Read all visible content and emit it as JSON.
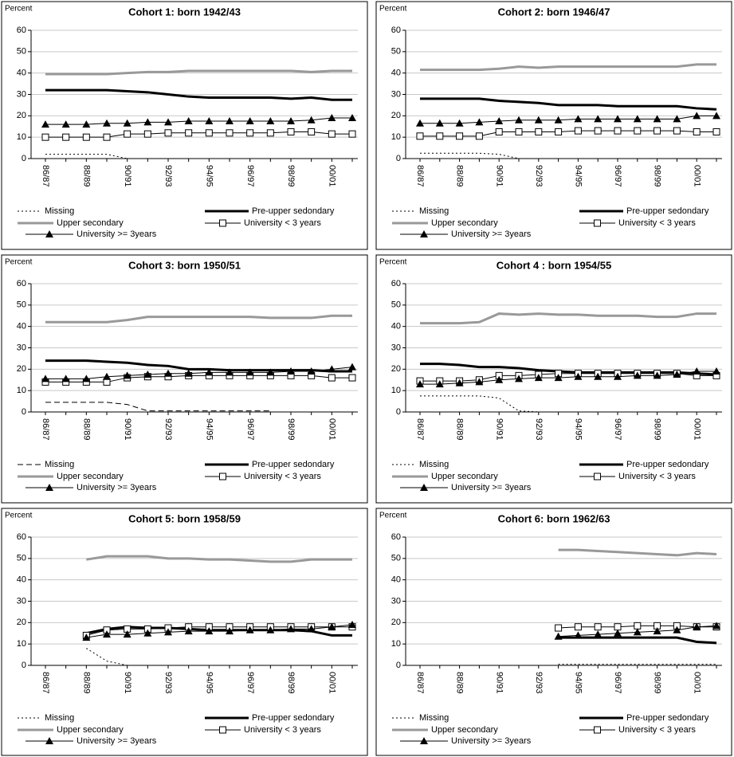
{
  "chart_data": [
    {
      "type": "line",
      "title": "Cohort 1: born 1942/43",
      "ylabel": "Percent",
      "categories": [
        "86/87",
        null,
        "88/89",
        null,
        "90/91",
        null,
        "92/93",
        null,
        "94/95",
        null,
        "96/97",
        null,
        "98/99",
        null,
        "00/01",
        null
      ],
      "ylim": [
        0,
        60
      ],
      "yticks": [
        0,
        10,
        20,
        30,
        40,
        50,
        60
      ],
      "grid": true,
      "series": [
        {
          "name": "Missing",
          "color": "#000000",
          "line": "dotted",
          "values": [
            2,
            2,
            2,
            2,
            0,
            0,
            0,
            0,
            0,
            0,
            0,
            0,
            0,
            0,
            0,
            0
          ]
        },
        {
          "name": "Pre-upper sedondary",
          "color": "#000000",
          "line": "bold",
          "values": [
            32,
            32,
            32,
            32,
            31.5,
            31,
            30,
            29,
            28.5,
            28.5,
            28.5,
            28.5,
            28,
            28.5,
            27.5,
            27.5
          ]
        },
        {
          "name": "Upper secondary",
          "color": "#999999",
          "line": "bold",
          "values": [
            39.5,
            39.5,
            39.5,
            39.5,
            40,
            40.5,
            40.5,
            41,
            41,
            41,
            41,
            41,
            41,
            40.5,
            41,
            41
          ]
        },
        {
          "name": "University < 3 years",
          "color": "#000000",
          "line": "solid",
          "marker": "square",
          "values": [
            10,
            10,
            10,
            10,
            11.5,
            11.5,
            12,
            12,
            12,
            12,
            12,
            12,
            12.5,
            12.5,
            11.5,
            11.5
          ]
        },
        {
          "name": "University >= 3years",
          "color": "#000000",
          "line": "solid",
          "marker": "triangle",
          "values": [
            16,
            16,
            16,
            16.5,
            16.5,
            17,
            17,
            17.5,
            17.5,
            17.5,
            17.5,
            17.5,
            17.5,
            18,
            19,
            19
          ]
        }
      ]
    },
    {
      "type": "line",
      "title": "Cohort 2: born 1946/47",
      "ylabel": "Percent",
      "categories": [
        "86/87",
        null,
        "88/89",
        null,
        "90/91",
        null,
        "92/93",
        null,
        "94/95",
        null,
        "96/97",
        null,
        "98/99",
        null,
        "00/01",
        null
      ],
      "ylim": [
        0,
        60
      ],
      "yticks": [
        0,
        10,
        20,
        30,
        40,
        50,
        60
      ],
      "grid": true,
      "series": [
        {
          "name": "Missing",
          "color": "#000000",
          "line": "dotted",
          "values": [
            2.5,
            2.5,
            2.5,
            2.5,
            2,
            0,
            0,
            0,
            0,
            0,
            0,
            0,
            0,
            0,
            0,
            0
          ]
        },
        {
          "name": "Pre-upper sedondary",
          "color": "#000000",
          "line": "bold",
          "values": [
            28,
            28,
            28,
            28,
            27,
            26.5,
            26,
            25,
            25,
            25,
            24.5,
            24.5,
            24.5,
            24.5,
            23.5,
            23
          ]
        },
        {
          "name": "Upper secondary",
          "color": "#999999",
          "line": "bold",
          "values": [
            41.5,
            41.5,
            41.5,
            41.5,
            42,
            43,
            42.5,
            43,
            43,
            43,
            43,
            43,
            43,
            43,
            44,
            44
          ]
        },
        {
          "name": "University < 3 years",
          "color": "#000000",
          "line": "solid",
          "marker": "square",
          "values": [
            10.5,
            10.5,
            10.5,
            10.5,
            12.5,
            12.5,
            12.5,
            12.5,
            13,
            13,
            13,
            13,
            13,
            13,
            12.5,
            12.5
          ]
        },
        {
          "name": "University >= 3years",
          "color": "#000000",
          "line": "solid",
          "marker": "triangle",
          "values": [
            16.5,
            16.5,
            16.5,
            17,
            17.5,
            18,
            18,
            18,
            18.5,
            18.5,
            18.5,
            18.5,
            18.5,
            18.5,
            20,
            20
          ]
        }
      ]
    },
    {
      "type": "line",
      "title": "Cohort 3: born 1950/51",
      "ylabel": "Percent",
      "categories": [
        "86/87",
        null,
        "88/89",
        null,
        "90/91",
        null,
        "92/93",
        null,
        "94/95",
        null,
        "96/97",
        null,
        "98/99",
        null,
        "00/01",
        null
      ],
      "ylim": [
        0,
        60
      ],
      "yticks": [
        0,
        10,
        20,
        30,
        40,
        50,
        60
      ],
      "grid": true,
      "series": [
        {
          "name": "Missing",
          "color": "#000000",
          "line": "dashed",
          "values": [
            4.5,
            4.5,
            4.5,
            4.5,
            3.5,
            0.5,
            0.5,
            0.5,
            0.5,
            0.5,
            0.5,
            0.5,
            null,
            null,
            null,
            null
          ]
        },
        {
          "name": "Pre-upper sedondary",
          "color": "#000000",
          "line": "bold",
          "values": [
            24,
            24,
            24,
            23.5,
            23,
            22,
            21.5,
            20,
            20,
            19.5,
            19.5,
            19.5,
            19.5,
            19.5,
            19,
            19
          ]
        },
        {
          "name": "Upper secondary",
          "color": "#999999",
          "line": "bold",
          "values": [
            42,
            42,
            42,
            42,
            43,
            44.5,
            44.5,
            44.5,
            44.5,
            44.5,
            44.5,
            44,
            44,
            44,
            45,
            45
          ]
        },
        {
          "name": "University < 3 years",
          "color": "#000000",
          "line": "solid",
          "marker": "square",
          "values": [
            14,
            14,
            14,
            14,
            16,
            16.5,
            16.5,
            17,
            17,
            17,
            17,
            17,
            17,
            17,
            16,
            16
          ]
        },
        {
          "name": "University >= 3years",
          "color": "#000000",
          "line": "solid",
          "marker": "triangle",
          "values": [
            15.5,
            15.5,
            15.5,
            16.5,
            17,
            17.5,
            18,
            18,
            18.5,
            18.5,
            18.5,
            18.5,
            19,
            19,
            20,
            21
          ]
        }
      ]
    },
    {
      "type": "line",
      "title": "Cohort 4 : born 1954/55",
      "ylabel": "Percent",
      "categories": [
        "86/87",
        null,
        "88/89",
        null,
        "90/91",
        null,
        "92/93",
        null,
        "94/95",
        null,
        "96/97",
        null,
        "98/99",
        null,
        "00/01",
        null
      ],
      "ylim": [
        0,
        60
      ],
      "yticks": [
        0,
        10,
        20,
        30,
        40,
        50,
        60
      ],
      "grid": true,
      "series": [
        {
          "name": "Missing",
          "color": "#000000",
          "line": "dotted",
          "values": [
            7.5,
            7.5,
            7.5,
            7.5,
            6.5,
            0.5,
            0,
            0,
            0,
            0,
            0,
            0,
            0,
            0,
            0,
            0
          ]
        },
        {
          "name": "Pre-upper sedondary",
          "color": "#000000",
          "line": "bold",
          "values": [
            22.5,
            22.5,
            22,
            21,
            21,
            20.5,
            19.5,
            19,
            18.5,
            18.5,
            18.5,
            18.5,
            18.5,
            18.5,
            18,
            17.5
          ]
        },
        {
          "name": "Upper secondary",
          "color": "#999999",
          "line": "bold",
          "values": [
            41.5,
            41.5,
            41.5,
            42,
            46,
            45.5,
            46,
            45.5,
            45.5,
            45,
            45,
            45,
            44.5,
            44.5,
            46,
            46
          ]
        },
        {
          "name": "University < 3 years",
          "color": "#000000",
          "line": "solid",
          "marker": "square",
          "values": [
            14.5,
            14.5,
            14.5,
            15,
            17,
            17,
            17.5,
            18,
            18,
            18,
            18,
            18,
            18,
            18,
            17,
            17
          ]
        },
        {
          "name": "University >= 3years",
          "color": "#000000",
          "line": "solid",
          "marker": "triangle",
          "values": [
            13,
            13,
            13.5,
            14,
            15,
            15.5,
            16,
            16,
            16.5,
            16.5,
            16.5,
            17,
            17,
            17.5,
            19,
            19
          ]
        }
      ]
    },
    {
      "type": "line",
      "title": "Cohort 5: born 1958/59",
      "ylabel": "Percent",
      "categories": [
        "86/87",
        null,
        "88/89",
        null,
        "90/91",
        null,
        "92/93",
        null,
        "94/95",
        null,
        "96/97",
        null,
        "98/99",
        null,
        "00/01",
        null
      ],
      "ylim": [
        0,
        60
      ],
      "yticks": [
        0,
        10,
        20,
        30,
        40,
        50,
        60
      ],
      "grid": true,
      "series": [
        {
          "name": "Missing",
          "color": "#000000",
          "line": "dotted",
          "values": [
            null,
            null,
            8,
            2,
            0,
            0,
            0,
            0,
            0,
            0,
            0,
            0,
            0,
            0,
            0,
            0
          ]
        },
        {
          "name": "Pre-upper sedondary",
          "color": "#000000",
          "line": "bold",
          "values": [
            null,
            null,
            15,
            17,
            18,
            17.5,
            17.5,
            17,
            16.5,
            16.5,
            16.5,
            16.5,
            16.5,
            16,
            14,
            14
          ]
        },
        {
          "name": "Upper secondary",
          "color": "#999999",
          "line": "bold",
          "values": [
            null,
            null,
            49.5,
            51,
            51,
            51,
            50,
            50,
            49.5,
            49.5,
            49,
            48.5,
            48.5,
            49.5,
            49.5,
            49.5
          ]
        },
        {
          "name": "University < 3 years",
          "color": "#000000",
          "line": "solid",
          "marker": "square",
          "values": [
            null,
            null,
            14,
            16.5,
            17,
            17,
            17.5,
            18,
            18,
            18,
            18,
            18,
            18,
            18,
            18,
            18
          ]
        },
        {
          "name": "University >= 3years",
          "color": "#000000",
          "line": "solid",
          "marker": "triangle",
          "values": [
            null,
            null,
            13,
            14.5,
            14.5,
            15,
            15.5,
            16,
            16,
            16,
            16.5,
            16.5,
            17,
            17,
            18,
            19
          ]
        }
      ]
    },
    {
      "type": "line",
      "title": "Cohort 6: born 1962/63",
      "ylabel": "Percent",
      "categories": [
        "86/87",
        null,
        "88/89",
        null,
        "90/91",
        null,
        "92/93",
        null,
        "94/95",
        null,
        "96/97",
        null,
        "98/99",
        null,
        "00/01",
        null
      ],
      "ylim": [
        0,
        60
      ],
      "yticks": [
        0,
        10,
        20,
        30,
        40,
        50,
        60
      ],
      "grid": true,
      "series": [
        {
          "name": "Missing",
          "color": "#000000",
          "line": "dotted",
          "values": [
            null,
            null,
            null,
            null,
            null,
            null,
            null,
            0.5,
            0.5,
            0.5,
            0.5,
            0.5,
            0.5,
            0.5,
            0.5,
            0.5
          ]
        },
        {
          "name": "Pre-upper sedondary",
          "color": "#000000",
          "line": "bold",
          "values": [
            null,
            null,
            null,
            null,
            null,
            null,
            null,
            13,
            13,
            13,
            13,
            13,
            13,
            13,
            11,
            10.5
          ]
        },
        {
          "name": "Upper secondary",
          "color": "#999999",
          "line": "bold",
          "values": [
            null,
            null,
            null,
            null,
            null,
            null,
            null,
            54,
            54,
            53.5,
            53,
            52.5,
            52,
            51.5,
            52.5,
            52
          ]
        },
        {
          "name": "University < 3 years",
          "color": "#000000",
          "line": "solid",
          "marker": "square",
          "values": [
            null,
            null,
            null,
            null,
            null,
            null,
            null,
            17.5,
            18,
            18,
            18,
            18.5,
            18.5,
            18.5,
            18,
            18
          ]
        },
        {
          "name": "University >= 3years",
          "color": "#000000",
          "line": "solid",
          "marker": "triangle",
          "values": [
            null,
            null,
            null,
            null,
            null,
            null,
            null,
            13.5,
            14,
            14.5,
            15,
            15.5,
            16,
            16.5,
            18,
            18.5
          ]
        }
      ]
    }
  ]
}
